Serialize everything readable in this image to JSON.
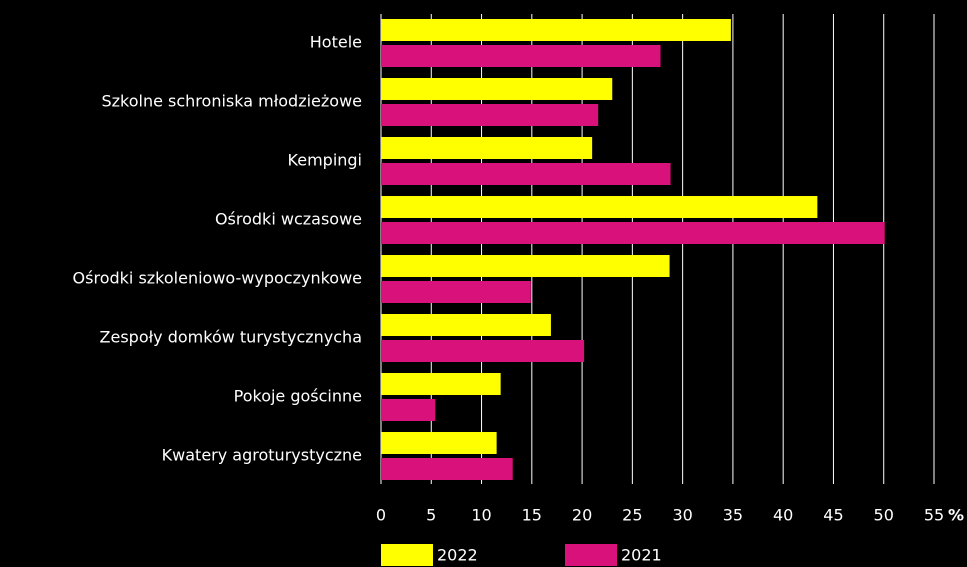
{
  "chart_data": {
    "type": "bar",
    "orientation": "horizontal",
    "categories": [
      "Hotele",
      "Szkolne schroniska młodzieżowe",
      "Kempingi",
      "Ośrodki wczasowe",
      "Ośrodki szkoleniowo-wypoczynkowe",
      "Zespoły domków turystycznycha",
      "Pokoje gościnne",
      "Kwatery agroturystyczne"
    ],
    "series": [
      {
        "name": "2022",
        "color": "#ffff00",
        "values": [
          34.8,
          23.0,
          21.0,
          43.4,
          28.7,
          16.9,
          11.9,
          11.5
        ]
      },
      {
        "name": "2021",
        "color": "#d9127b",
        "values": [
          27.8,
          21.6,
          28.8,
          50.1,
          14.9,
          20.2,
          5.4,
          13.1
        ]
      }
    ],
    "xlabel": "%",
    "xlim": [
      0,
      55
    ],
    "xticks": [
      0,
      5,
      10,
      15,
      20,
      25,
      30,
      35,
      40,
      45,
      50,
      55
    ],
    "grid": true,
    "legend": "bottom"
  }
}
